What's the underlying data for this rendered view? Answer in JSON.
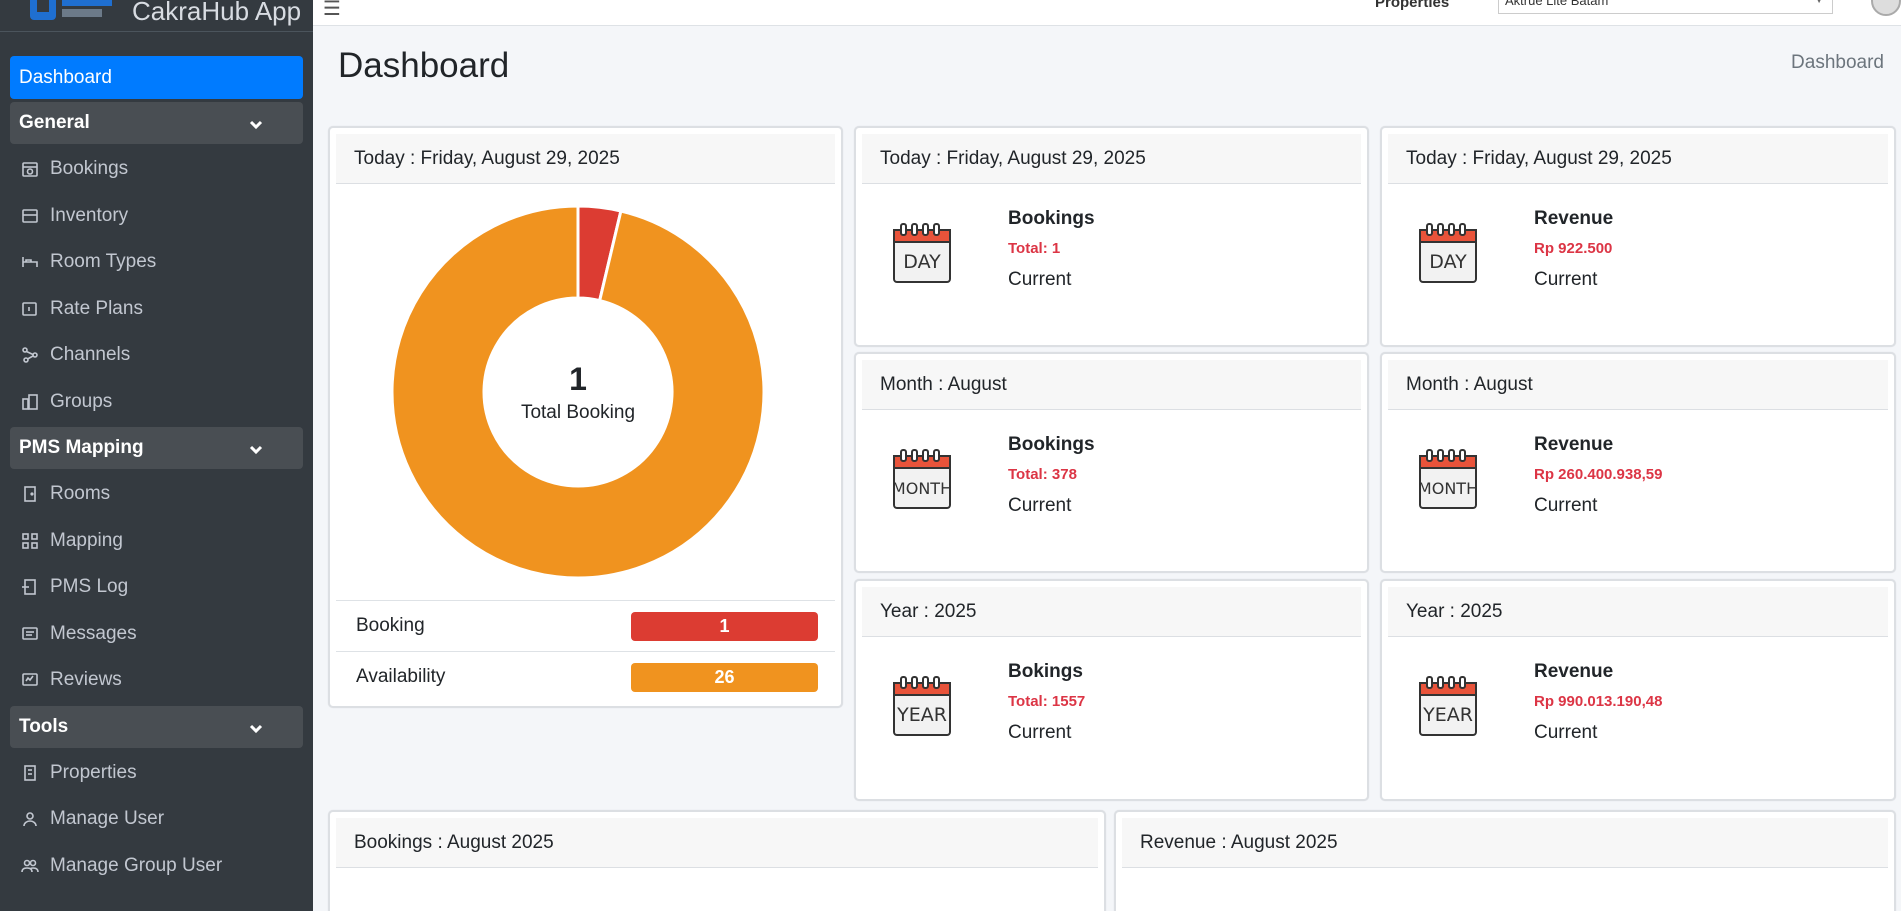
{
  "app": {
    "title": "CakraHub App"
  },
  "sidebar": {
    "items": [
      {
        "label": "Dashboard",
        "type": "active",
        "icon": ""
      },
      {
        "label": "General",
        "type": "section"
      },
      {
        "label": "Bookings",
        "type": "item",
        "icon": "calendar-icon"
      },
      {
        "label": "Inventory",
        "type": "item",
        "icon": "box-icon"
      },
      {
        "label": "Room Types",
        "type": "item",
        "icon": "bed-icon"
      },
      {
        "label": "Rate Plans",
        "type": "item",
        "icon": "tag-icon"
      },
      {
        "label": "Channels",
        "type": "item",
        "icon": "network-icon"
      },
      {
        "label": "Groups",
        "type": "item",
        "icon": "buildings-icon"
      },
      {
        "label": "PMS Mapping",
        "type": "section"
      },
      {
        "label": "Rooms",
        "type": "item",
        "icon": "door-icon"
      },
      {
        "label": "Mapping",
        "type": "item",
        "icon": "map-icon"
      },
      {
        "label": "PMS Log",
        "type": "item",
        "icon": "log-icon"
      },
      {
        "label": "Messages",
        "type": "item",
        "icon": "message-icon"
      },
      {
        "label": "Reviews",
        "type": "item",
        "icon": "review-icon"
      },
      {
        "label": "Tools",
        "type": "section"
      },
      {
        "label": "Properties",
        "type": "item",
        "icon": "building-icon"
      },
      {
        "label": "Manage User",
        "type": "item",
        "icon": "user-icon"
      },
      {
        "label": "Manage Group User",
        "type": "item",
        "icon": "users-icon"
      }
    ]
  },
  "topbar": {
    "properties_label": "Properties",
    "properties_value": "Aktrue Lite Batam"
  },
  "header": {
    "title": "Dashboard",
    "breadcrumb": "Dashboard"
  },
  "donut_card": {
    "header": "Today : Friday, August 29, 2025",
    "center_number": "1",
    "center_label": "Total Booking",
    "legend": [
      {
        "label": "Booking",
        "value": "1",
        "color": "#dc3c32"
      },
      {
        "label": "Availability",
        "value": "26",
        "color": "#f0931f"
      }
    ]
  },
  "chart_data": {
    "type": "pie",
    "categories": [
      "Booking",
      "Availability"
    ],
    "values": [
      1,
      26
    ],
    "colors": [
      "#dc3c32",
      "#f0931f"
    ],
    "title": "",
    "center_text": "1 Total Booking"
  },
  "stats": [
    {
      "header": "Today : Friday, August 29, 2025",
      "title": "Bookings",
      "total": "Total: 1",
      "sub": "Current",
      "icon_text": "DAY"
    },
    {
      "header": "Today : Friday, August 29, 2025",
      "title": "Revenue",
      "total": "Rp 922.500",
      "sub": "Current",
      "icon_text": "DAY"
    },
    {
      "header": "Month : August",
      "title": "Bookings",
      "total": "Total: 378",
      "sub": "Current",
      "icon_text": "MONTH"
    },
    {
      "header": "Month : August",
      "title": "Revenue",
      "total": "Rp 260.400.938,59",
      "sub": "Current",
      "icon_text": "MONTH"
    },
    {
      "header": "Year : 2025",
      "title": "Bokings",
      "total": "Total: 1557",
      "sub": "Current",
      "icon_text": "YEAR"
    },
    {
      "header": "Year : 2025",
      "title": "Revenue",
      "total": "Rp 990.013.190,48",
      "sub": "Current",
      "icon_text": "YEAR"
    }
  ],
  "bottom": {
    "bookings_header": "Bookings : August 2025",
    "revenue_header": "Revenue : August 2025"
  },
  "colors": {
    "primary": "#007bff",
    "sidebar": "#343a40",
    "danger": "#dc3545",
    "orange": "#f0931f"
  }
}
